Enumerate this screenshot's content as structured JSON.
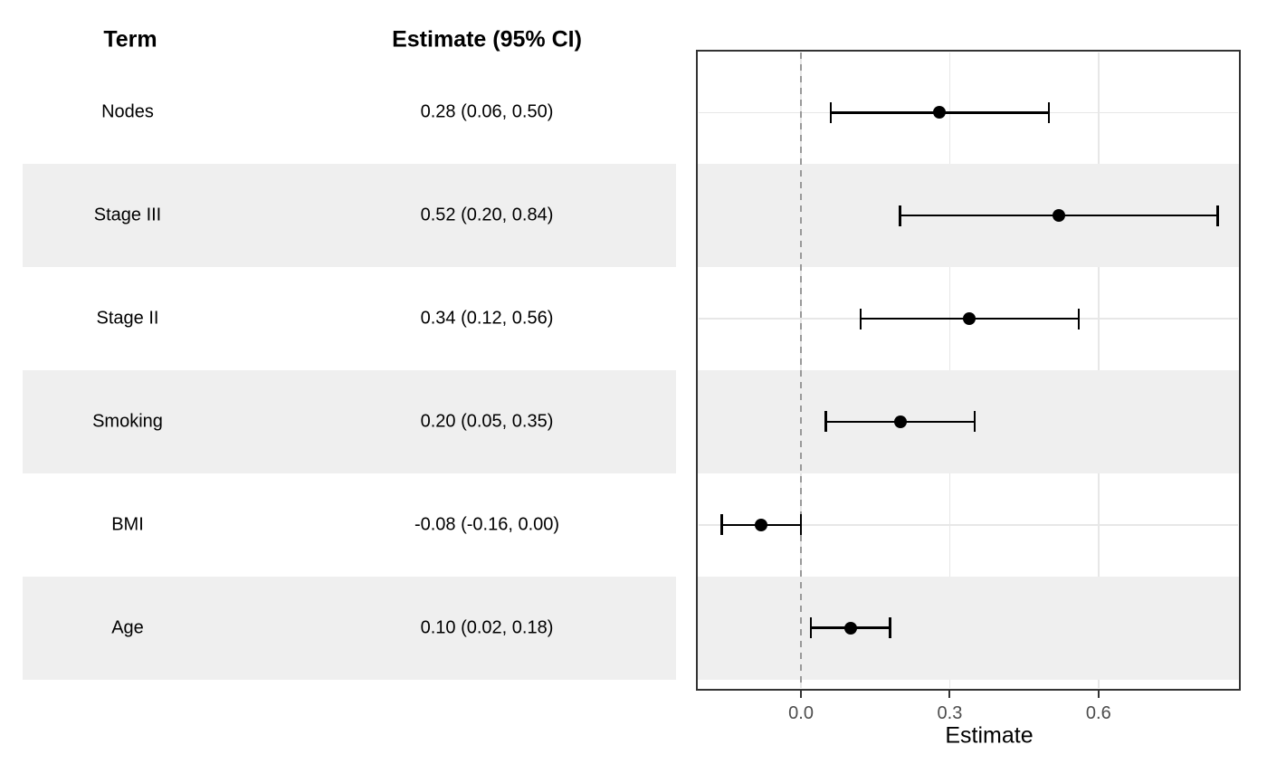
{
  "table": {
    "term_header": "Term",
    "estimate_header": "Estimate (95% CI)",
    "rows": [
      {
        "term": "Nodes",
        "estimate_ci": "0.28 (0.06, 0.50)"
      },
      {
        "term": "Stage III",
        "estimate_ci": "0.52 (0.20, 0.84)"
      },
      {
        "term": "Stage II",
        "estimate_ci": "0.34 (0.12, 0.56)"
      },
      {
        "term": "Smoking",
        "estimate_ci": "0.20 (0.05, 0.35)"
      },
      {
        "term": "BMI",
        "estimate_ci": "-0.08 (-0.16, 0.00)"
      },
      {
        "term": "Age",
        "estimate_ci": "0.10 (0.02, 0.18)"
      }
    ]
  },
  "chart_data": {
    "type": "scatter",
    "variant": "forest-dot-whisker",
    "categories": [
      "Nodes",
      "Stage III",
      "Stage II",
      "Smoking",
      "BMI",
      "Age"
    ],
    "estimates": [
      0.28,
      0.52,
      0.34,
      0.2,
      -0.08,
      0.1
    ],
    "ci_lower": [
      0.06,
      0.2,
      0.12,
      0.05,
      -0.16,
      0.02
    ],
    "ci_upper": [
      0.5,
      0.84,
      0.56,
      0.35,
      0.0,
      0.18
    ],
    "xlabel": "Estimate",
    "x_ticks": [
      0.0,
      0.3,
      0.6
    ],
    "x_tick_labels": [
      "0.0",
      "0.3",
      "0.6"
    ],
    "xlim": [
      -0.21,
      0.885
    ],
    "reference_line_x": 0,
    "grid": "major",
    "legend": "none",
    "striped_row_indices": [
      1,
      3,
      5
    ]
  },
  "colors": {
    "background": "#ffffff",
    "stripe": "#efefef",
    "gridline": "#e7e7e7",
    "panel_border": "#333333",
    "reference_line": "#999999",
    "marker": "#000000",
    "text": "#000000",
    "tick_label": "#4d4d4d"
  }
}
